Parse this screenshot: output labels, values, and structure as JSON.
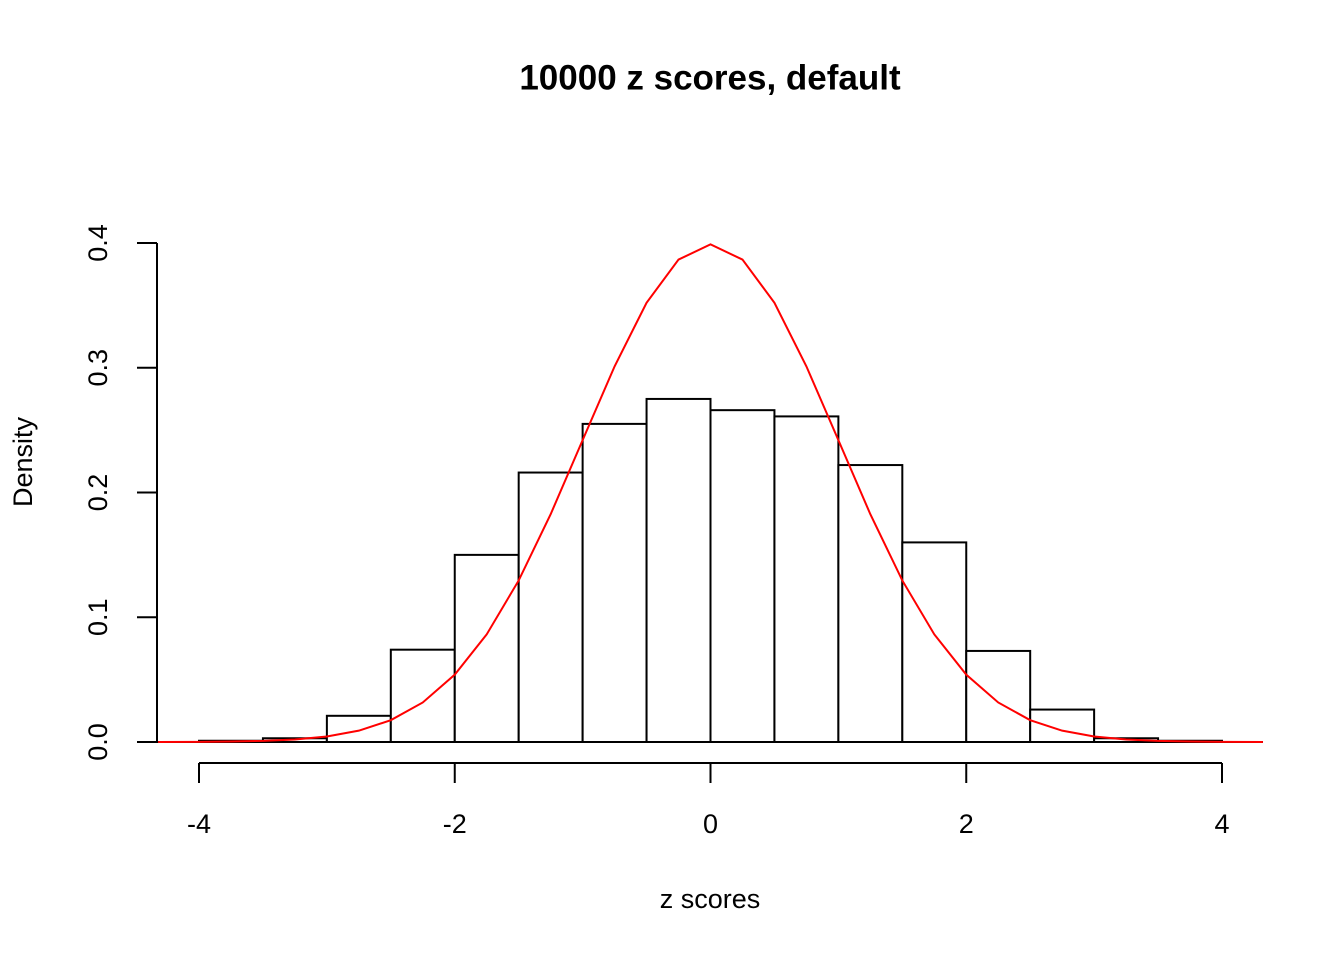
{
  "chart_data": {
    "type": "histogram",
    "title": "10000 z scores, default",
    "xlabel": "z scores",
    "ylabel": "Density",
    "bins": [
      -4,
      -3.5,
      -3,
      -2.5,
      -2,
      -1.5,
      -1,
      -0.5,
      0,
      0.5,
      1,
      1.5,
      2,
      2.5,
      3,
      3.5,
      4
    ],
    "values": [
      0.001,
      0.003,
      0.021,
      0.074,
      0.15,
      0.216,
      0.255,
      0.275,
      0.266,
      0.261,
      0.222,
      0.16,
      0.073,
      0.026,
      0.003,
      0.001
    ],
    "color": "#ffffff",
    "xlim": [
      -4,
      4
    ],
    "ylim": [
      0,
      0.4
    ],
    "xticks": [
      -4,
      -2,
      0,
      2,
      4
    ],
    "yticks": [
      {
        "value": 0,
        "label": "0.0"
      },
      0.1,
      0.2,
      0.3,
      0.4
    ],
    "curve": {
      "color": "#ff0000",
      "x": [
        -4.32,
        -4,
        -3.75,
        -3.5,
        -3.25,
        -3,
        -2.75,
        -2.5,
        -2.25,
        -2,
        -1.75,
        -1.5,
        -1.25,
        -1,
        -0.75,
        -0.5,
        -0.25,
        0,
        0.25,
        0.5,
        0.75,
        1,
        1.25,
        1.5,
        1.75,
        2,
        2.25,
        2.5,
        2.75,
        3,
        3.25,
        3.5,
        3.75,
        4,
        4.32
      ],
      "y": [
        0.0,
        0.0001,
        0.0004,
        0.0009,
        0.002,
        0.0044,
        0.0091,
        0.0175,
        0.0317,
        0.054,
        0.0863,
        0.1295,
        0.1826,
        0.242,
        0.3011,
        0.3521,
        0.3867,
        0.3989,
        0.3867,
        0.3521,
        0.3011,
        0.242,
        0.1826,
        0.1295,
        0.0863,
        0.054,
        0.0317,
        0.0175,
        0.0091,
        0.0044,
        0.002,
        0.0009,
        0.0004,
        0.0001,
        0.0
      ]
    }
  }
}
